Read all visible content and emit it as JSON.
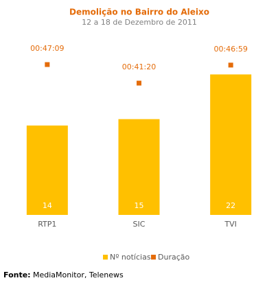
{
  "chart_data": {
    "type": "bar",
    "title": "Demolição no Bairro do Aleixo",
    "subtitle": "12 a 18 de Dezembro de 2011",
    "categories": [
      "RTP1",
      "SIC",
      "TVI"
    ],
    "series": [
      {
        "name": "Nº notícias",
        "color": "#ffc000",
        "values": [
          14,
          15,
          22
        ]
      },
      {
        "name": "Duração",
        "color": "#e46c0a",
        "axis": "y2",
        "values": [
          2829,
          2480,
          2819
        ],
        "value_labels": [
          "00:47:09",
          "00:41:20",
          "00:46:59"
        ]
      }
    ],
    "source_label": "Fonte:",
    "source": "MediaMonitor, Telenews"
  }
}
